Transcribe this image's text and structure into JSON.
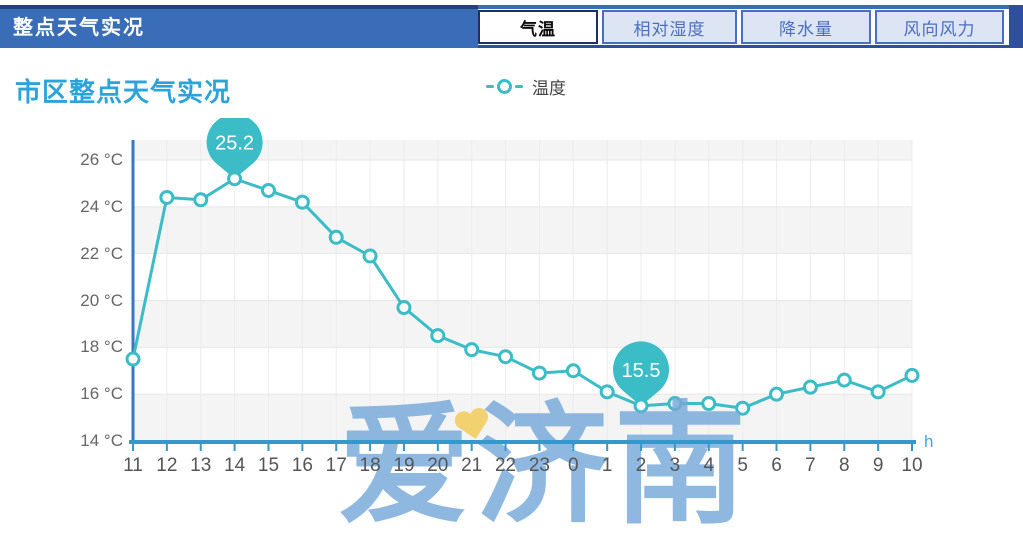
{
  "header": {
    "title": "整点天气实况",
    "tabs": [
      {
        "label": "气温",
        "active": true
      },
      {
        "label": "相对湿度",
        "active": false
      },
      {
        "label": "降水量",
        "active": false
      },
      {
        "label": "风向风力",
        "active": false
      }
    ]
  },
  "chart_header": {
    "title": "市区整点天气实况",
    "legend_label": "温度"
  },
  "watermark": {
    "text": "爱济南",
    "heart_icon": "heart-icon"
  },
  "chart_data": {
    "type": "line",
    "title": "市区整点天气实况",
    "legend": [
      {
        "name": "温度",
        "color": "#3bbcc6"
      }
    ],
    "legend_position": "top-center",
    "grid": true,
    "x_categories": [
      "11",
      "12",
      "13",
      "14",
      "15",
      "16",
      "17",
      "18",
      "19",
      "20",
      "21",
      "22",
      "23",
      "0",
      "1",
      "2",
      "3",
      "4",
      "5",
      "6",
      "7",
      "8",
      "9",
      "10"
    ],
    "series": [
      {
        "name": "温度",
        "values": [
          17.5,
          24.4,
          24.3,
          25.2,
          24.7,
          24.2,
          22.7,
          21.9,
          19.7,
          18.5,
          17.9,
          17.6,
          16.9,
          17.0,
          16.1,
          15.5,
          15.6,
          15.6,
          15.4,
          16.0,
          16.3,
          16.6,
          16.1,
          16.8
        ]
      }
    ],
    "y_min": 14,
    "y_max": 26,
    "y_step": 2,
    "y_unit": "°C",
    "x_unit": "h",
    "annotations": [
      {
        "category": "14",
        "value": 25.2,
        "label": "25.2"
      },
      {
        "category": "2",
        "value": 15.5,
        "label": "15.5"
      }
    ]
  },
  "colors": {
    "teal": "#3bbcc6",
    "header_blue": "#3a6db8",
    "header_navy": "#2d4f9e",
    "top_line_navy": "#26407c",
    "tab_active_border": "#1e2f63",
    "tab_text_blue": "#4a6fc0",
    "tab_bg_inactive": "#dde4f3",
    "chart_title_blue": "#2ba3db",
    "y_axis_blue": "#3a77c2",
    "x_axis_blue": "#3598cd",
    "h_label_blue": "#4aa3d8",
    "band_gray": "#f4f4f4",
    "grid_gray": "#e7e7e7",
    "vgrid_gray": "#ececec",
    "label_gray": "#555555",
    "watermark_blue": "#76a9da",
    "heart_yellow": "#f2d06b"
  }
}
